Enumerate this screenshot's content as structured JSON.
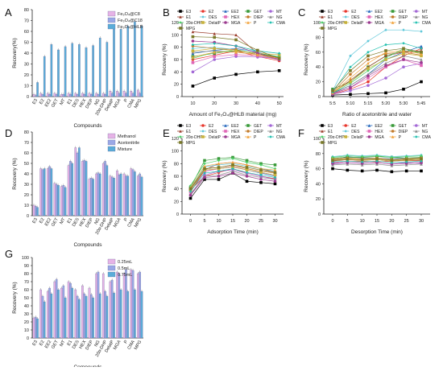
{
  "compounds": [
    "E3",
    "E2",
    "EE2",
    "GET",
    "MT",
    "E1",
    "DES",
    "HEX",
    "DIEP",
    "NG",
    "20α-DHP",
    "DelatP",
    "MGA",
    "P",
    "CMA",
    "MPG"
  ],
  "colors": {
    "E3": "#000000",
    "E2": "#e8372d",
    "EE2": "#2266bb",
    "GET": "#3a9a3a",
    "MT": "#a368d6",
    "E1": "#9a3b2a",
    "DES": "#5fc7d9",
    "HEX": "#e066b6",
    "DIEP": "#c27a2a",
    "NG": "#8a8a8a",
    "20α-DHP": "#4fd06a",
    "DelatP": "#c7b23c",
    "MGA": "#9b3a8f",
    "P": "#f2a23a",
    "CMA": "#22c0b0",
    "MPG": "#7a7a2a"
  },
  "chart_data": [
    {
      "panel": "A",
      "type": "bar",
      "categories": [
        "E3",
        "E2",
        "EE2",
        "GET",
        "MT",
        "E1",
        "DES",
        "HEX",
        "DIEP",
        "NG",
        "20α-DHP",
        "DelatP",
        "MGA",
        "P",
        "CMA",
        "MPG"
      ],
      "ylabel": "Recovery(%)",
      "xlabel": "Compounds",
      "ylim": [
        0,
        80
      ],
      "yticks": [
        0,
        10,
        20,
        30,
        40,
        50,
        60,
        70,
        80
      ],
      "legend_position": "top-right",
      "series": [
        {
          "name": "Fe₃O₄@C8",
          "color": "#e6b3e6",
          "values": [
            2,
            3,
            3,
            3,
            2,
            3,
            3,
            3,
            3,
            3,
            3,
            5,
            5,
            5,
            5,
            6
          ]
        },
        {
          "name": "Fe₃O₄@C18",
          "color": "#9aa8e6",
          "values": [
            1,
            2,
            2,
            2,
            2,
            2,
            2,
            2,
            2,
            2,
            2,
            3,
            3,
            3,
            3,
            3
          ]
        },
        {
          "name": "Fe₃O₄@HLB",
          "color": "#5aacd8",
          "values": [
            13,
            37,
            48,
            43,
            46,
            49,
            48,
            45,
            47,
            54,
            50,
            65,
            62,
            65,
            69,
            65
          ]
        }
      ]
    },
    {
      "panel": "B",
      "type": "line",
      "xlabel": "Amount of Fe₃O₄@HLB material (mg)",
      "ylabel": "Recovery (%)",
      "x": [
        10,
        20,
        30,
        40,
        50
      ],
      "xlim": [
        5,
        52
      ],
      "ylim": [
        0,
        120
      ],
      "xticks": [
        10,
        20,
        30,
        40,
        50
      ],
      "yticks": [
        0,
        20,
        40,
        60,
        80,
        100,
        120
      ],
      "series": [
        {
          "name": "E3",
          "values": [
            17,
            30,
            36,
            40,
            42
          ]
        },
        {
          "name": "E2",
          "values": [
            60,
            67,
            74,
            65,
            58
          ]
        },
        {
          "name": "EE2",
          "values": [
            70,
            75,
            78,
            72,
            62
          ]
        },
        {
          "name": "GET",
          "values": [
            65,
            70,
            75,
            70,
            64
          ]
        },
        {
          "name": "MT",
          "values": [
            40,
            60,
            65,
            64,
            62
          ]
        },
        {
          "name": "E1",
          "values": [
            105,
            102,
            100,
            70,
            62
          ]
        },
        {
          "name": "DES",
          "values": [
            78,
            80,
            76,
            74,
            70
          ]
        },
        {
          "name": "HEX",
          "values": [
            55,
            65,
            68,
            66,
            60
          ]
        },
        {
          "name": "DIEP",
          "values": [
            82,
            78,
            76,
            68,
            63
          ]
        },
        {
          "name": "NG",
          "values": [
            72,
            74,
            72,
            68,
            60
          ]
        },
        {
          "name": "20α-DHP",
          "values": [
            62,
            72,
            74,
            70,
            65
          ]
        },
        {
          "name": "DelatP",
          "values": [
            74,
            78,
            74,
            70,
            68
          ]
        },
        {
          "name": "MGA",
          "values": [
            90,
            88,
            82,
            70,
            60
          ]
        },
        {
          "name": "P",
          "values": [
            64,
            72,
            72,
            68,
            62
          ]
        },
        {
          "name": "CMA",
          "values": [
            84,
            86,
            82,
            74,
            70
          ]
        },
        {
          "name": "MPG",
          "values": [
            97,
            96,
            92,
            75,
            62
          ]
        }
      ]
    },
    {
      "panel": "C",
      "type": "line",
      "xlabel": "Ratio of acetonitrile and water",
      "ylabel": "Recovery (%)",
      "categories": [
        "5:5",
        "5:10",
        "5:15",
        "5:20",
        "5:30",
        "5:45"
      ],
      "ylim": [
        0,
        100
      ],
      "yticks": [
        0,
        20,
        40,
        60,
        80,
        100
      ],
      "series": [
        {
          "name": "E3",
          "values": [
            2,
            3,
            4,
            5,
            10,
            20
          ]
        },
        {
          "name": "E2",
          "values": [
            3,
            10,
            20,
            40,
            55,
            65
          ]
        },
        {
          "name": "EE2",
          "values": [
            5,
            15,
            30,
            50,
            60,
            68
          ]
        },
        {
          "name": "GET",
          "values": [
            10,
            20,
            40,
            55,
            62,
            60
          ]
        },
        {
          "name": "MT",
          "values": [
            3,
            8,
            15,
            25,
            40,
            45
          ]
        },
        {
          "name": "E1",
          "values": [
            5,
            22,
            40,
            55,
            60,
            62
          ]
        },
        {
          "name": "DES",
          "values": [
            8,
            55,
            75,
            90,
            90,
            88
          ]
        },
        {
          "name": "HEX",
          "values": [
            4,
            12,
            25,
            40,
            50,
            42
          ]
        },
        {
          "name": "DIEP",
          "values": [
            6,
            30,
            50,
            58,
            60,
            56
          ]
        },
        {
          "name": "NG",
          "values": [
            4,
            15,
            30,
            45,
            55,
            50
          ]
        },
        {
          "name": "20α-DHP",
          "values": [
            5,
            18,
            35,
            52,
            65,
            58
          ]
        },
        {
          "name": "DelatP",
          "values": [
            6,
            20,
            38,
            50,
            58,
            55
          ]
        },
        {
          "name": "MGA",
          "values": [
            4,
            12,
            28,
            42,
            50,
            46
          ]
        },
        {
          "name": "P",
          "values": [
            5,
            25,
            45,
            60,
            62,
            58
          ]
        },
        {
          "name": "CMA",
          "values": [
            6,
            40,
            60,
            70,
            72,
            65
          ]
        },
        {
          "name": "MPG",
          "values": [
            8,
            35,
            55,
            62,
            65,
            60
          ]
        }
      ]
    },
    {
      "panel": "D",
      "type": "bar",
      "categories": [
        "E3",
        "E2",
        "EE2",
        "GET",
        "MT",
        "E1",
        "DES",
        "HEX",
        "DIEP",
        "NG",
        "20α-DHP",
        "DelatP",
        "MGA",
        "P",
        "CMA",
        "MPG"
      ],
      "ylabel": "Recovery (%)",
      "xlabel": "Compounds",
      "ylim": [
        0,
        80
      ],
      "yticks": [
        0,
        10,
        20,
        30,
        40,
        50,
        60,
        70,
        80
      ],
      "legend_position": "top-right",
      "series": [
        {
          "name": "Methanol",
          "color": "#e6b3e6",
          "values": [
            10,
            45,
            45,
            31,
            28,
            48,
            65,
            52,
            35,
            40,
            50,
            38,
            43,
            40,
            45,
            38
          ]
        },
        {
          "name": "Acetonitrile",
          "color": "#9aa8e6",
          "values": [
            9,
            44,
            47,
            30,
            29,
            52,
            60,
            53,
            36,
            41,
            52,
            37,
            39,
            38,
            44,
            40
          ]
        },
        {
          "name": "Mixture",
          "color": "#5aacd8",
          "values": [
            8,
            45,
            45,
            29,
            27,
            50,
            65,
            52,
            35,
            40,
            48,
            36,
            40,
            38,
            42,
            37
          ]
        }
      ]
    },
    {
      "panel": "E",
      "type": "line",
      "xlabel": "Adsorption Time (min)",
      "ylabel": "Recovery (%)",
      "x": [
        0,
        5,
        10,
        15,
        20,
        25,
        30
      ],
      "ylim": [
        0,
        120
      ],
      "xticks": [
        0,
        5,
        10,
        15,
        20,
        25,
        30
      ],
      "yticks": [
        0,
        20,
        40,
        60,
        80,
        100,
        120
      ],
      "series": [
        {
          "name": "E3",
          "values": [
            25,
            55,
            55,
            65,
            52,
            50,
            48
          ]
        },
        {
          "name": "E2",
          "values": [
            38,
            60,
            66,
            72,
            65,
            60,
            56
          ]
        },
        {
          "name": "EE2",
          "values": [
            40,
            68,
            72,
            75,
            70,
            65,
            60
          ]
        },
        {
          "name": "GET",
          "values": [
            42,
            85,
            88,
            90,
            85,
            80,
            78
          ]
        },
        {
          "name": "MT",
          "values": [
            30,
            62,
            68,
            70,
            65,
            60,
            55
          ]
        },
        {
          "name": "E1",
          "values": [
            35,
            70,
            80,
            82,
            78,
            72,
            66
          ]
        },
        {
          "name": "DES",
          "values": [
            40,
            75,
            78,
            80,
            76,
            72,
            68
          ]
        },
        {
          "name": "HEX",
          "values": [
            35,
            68,
            72,
            76,
            70,
            66,
            62
          ]
        },
        {
          "name": "DIEP",
          "values": [
            38,
            72,
            74,
            78,
            72,
            68,
            65
          ]
        },
        {
          "name": "NG",
          "values": [
            32,
            60,
            62,
            68,
            62,
            58,
            55
          ]
        },
        {
          "name": "20α-DHP",
          "values": [
            45,
            80,
            85,
            88,
            82,
            78,
            72
          ]
        },
        {
          "name": "DelatP",
          "values": [
            38,
            70,
            72,
            75,
            70,
            66,
            62
          ]
        },
        {
          "name": "MGA",
          "values": [
            30,
            58,
            60,
            65,
            60,
            55,
            52
          ]
        },
        {
          "name": "P",
          "values": [
            42,
            76,
            80,
            82,
            78,
            72,
            70
          ]
        },
        {
          "name": "CMA",
          "values": [
            36,
            65,
            68,
            72,
            66,
            62,
            58
          ]
        },
        {
          "name": "MPG",
          "values": [
            40,
            72,
            74,
            78,
            74,
            70,
            66
          ]
        }
      ]
    },
    {
      "panel": "F",
      "type": "line",
      "xlabel": "Desorption Time (min)",
      "ylabel": "Recovery (%)",
      "x": [
        0,
        5,
        10,
        15,
        20,
        25,
        30
      ],
      "ylim": [
        0,
        100
      ],
      "xticks": [
        0,
        5,
        10,
        15,
        20,
        25,
        30
      ],
      "yticks": [
        0,
        20,
        40,
        60,
        80,
        100
      ],
      "series": [
        {
          "name": "E3",
          "values": [
            60,
            58,
            57,
            58,
            56,
            57,
            57
          ]
        },
        {
          "name": "E2",
          "values": [
            68,
            70,
            70,
            69,
            70,
            71,
            70
          ]
        },
        {
          "name": "EE2",
          "values": [
            72,
            76,
            74,
            74,
            73,
            74,
            74
          ]
        },
        {
          "name": "GET",
          "values": [
            74,
            75,
            75,
            76,
            75,
            74,
            75
          ]
        },
        {
          "name": "MT",
          "values": [
            66,
            68,
            67,
            68,
            66,
            68,
            67
          ]
        },
        {
          "name": "E1",
          "values": [
            70,
            72,
            71,
            72,
            70,
            72,
            71
          ]
        },
        {
          "name": "DES",
          "values": [
            76,
            78,
            77,
            78,
            76,
            77,
            78
          ]
        },
        {
          "name": "HEX",
          "values": [
            68,
            70,
            69,
            70,
            68,
            69,
            70
          ]
        },
        {
          "name": "DIEP",
          "values": [
            72,
            74,
            73,
            74,
            72,
            73,
            74
          ]
        },
        {
          "name": "NG",
          "values": [
            65,
            66,
            65,
            66,
            64,
            65,
            66
          ]
        },
        {
          "name": "20α-DHP",
          "values": [
            75,
            77,
            76,
            77,
            75,
            76,
            77
          ]
        },
        {
          "name": "DelatP",
          "values": [
            71,
            72,
            71,
            72,
            70,
            71,
            72
          ]
        },
        {
          "name": "MGA",
          "values": [
            67,
            68,
            67,
            68,
            66,
            67,
            68
          ]
        },
        {
          "name": "P",
          "values": [
            73,
            74,
            73,
            74,
            72,
            73,
            74
          ]
        },
        {
          "name": "CMA",
          "values": [
            69,
            70,
            69,
            70,
            68,
            69,
            70
          ]
        },
        {
          "name": "MPG",
          "values": [
            71,
            73,
            72,
            73,
            71,
            72,
            73
          ]
        }
      ]
    },
    {
      "panel": "G",
      "type": "bar",
      "categories": [
        "E3",
        "E2",
        "EE2",
        "GET",
        "MT",
        "E1",
        "DES",
        "HEX",
        "DIEP",
        "NG",
        "20α-DHP",
        "DelatP",
        "MGA",
        "P",
        "CMA",
        "MPG"
      ],
      "ylabel": "Recovery (%)",
      "xlabel": "Compounds",
      "ylim": [
        0,
        100
      ],
      "yticks": [
        0,
        10,
        20,
        30,
        40,
        50,
        60,
        70,
        80,
        90,
        100
      ],
      "legend_position": "top-right",
      "series": [
        {
          "name": "0.25mL",
          "color": "#e6b3e6",
          "values": [
            25,
            60,
            58,
            70,
            62,
            70,
            60,
            65,
            62,
            80,
            80,
            70,
            82,
            80,
            85,
            80
          ]
        },
        {
          "name": "0.5mL",
          "color": "#9aa8e6",
          "values": [
            26,
            52,
            62,
            73,
            65,
            68,
            52,
            55,
            54,
            82,
            58,
            72,
            80,
            85,
            84,
            82
          ]
        },
        {
          "name": "0.75mL",
          "color": "#5aacd8",
          "values": [
            24,
            45,
            55,
            60,
            50,
            62,
            48,
            52,
            50,
            55,
            52,
            56,
            60,
            58,
            60,
            58
          ]
        }
      ]
    }
  ]
}
